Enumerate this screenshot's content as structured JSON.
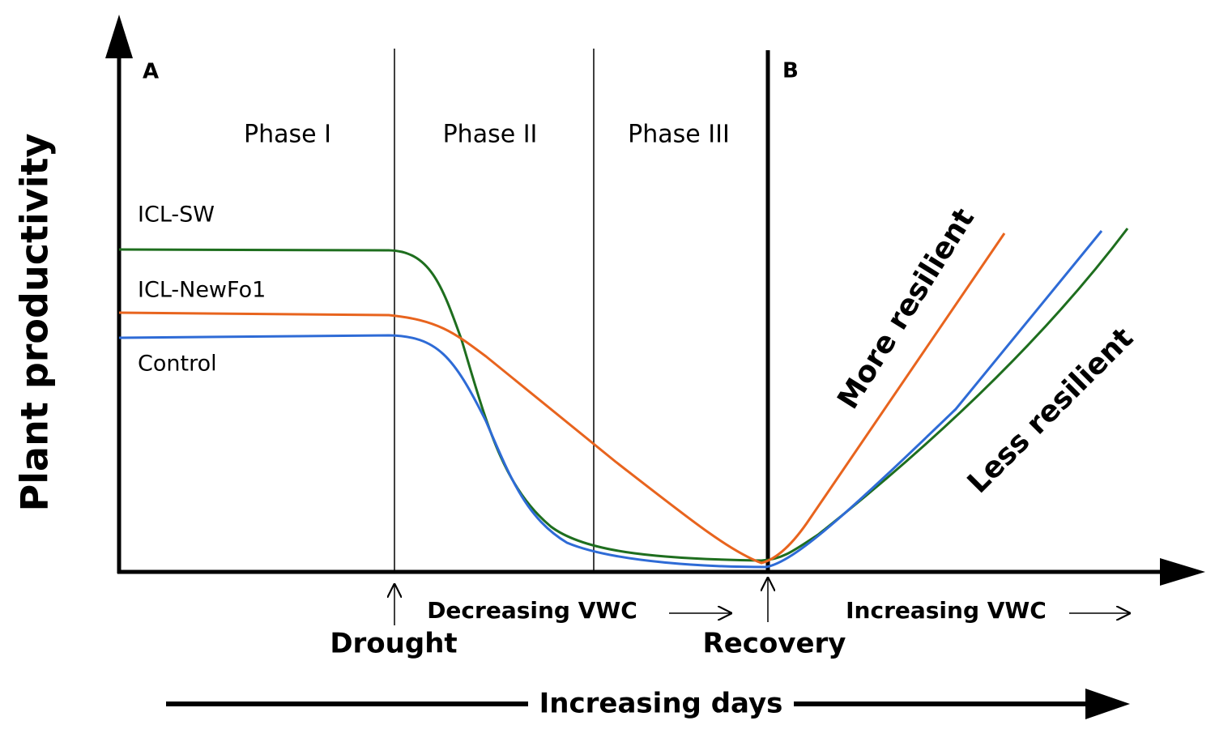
{
  "panels": [
    "A",
    "B"
  ],
  "phases": [
    "Phase I",
    "Phase II",
    "Phase III"
  ],
  "lines": [
    "ICL-SW",
    "ICL-NewFo1",
    "Control"
  ],
  "y_axis_label": "Plant productivity",
  "annotations": [
    "More resilient",
    "Less resilient"
  ],
  "x_labels": {
    "decreasing": "Decreasing VWC",
    "increasing": "Increasing VWC",
    "drought": "Drought",
    "recovery": "Recovery",
    "days": "Increasing days"
  }
}
